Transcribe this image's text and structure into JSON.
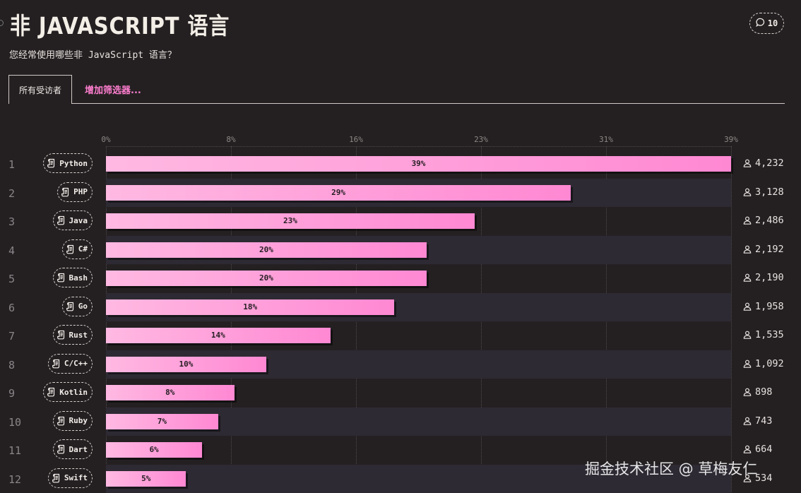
{
  "header": {
    "title": "非 JAVASCRIPT 语言",
    "subtitle": "您经常使用哪些非 JavaScript 语言？",
    "comment_count": "10"
  },
  "filters": {
    "active_tab": "所有受访者",
    "add_filter": "增加筛选器..."
  },
  "watermark": "掘金技术社区 @ 草梅友仁",
  "chart_data": {
    "type": "bar",
    "orientation": "horizontal",
    "title": "非 JAVASCRIPT 语言",
    "xlim": [
      0,
      39
    ],
    "x_ticks": [
      "0%",
      "8%",
      "16%",
      "23%",
      "31%",
      "39%"
    ],
    "x_tick_values": [
      0,
      7.8,
      15.6,
      23.4,
      31.2,
      39
    ],
    "categories": [
      "Python",
      "PHP",
      "Java",
      "C#",
      "Bash",
      "Go",
      "Rust",
      "C/C++",
      "Kotlin",
      "Ruby",
      "Dart",
      "Swift"
    ],
    "ranks": [
      "1",
      "2",
      "3",
      "4",
      "5",
      "6",
      "7",
      "8",
      "9",
      "10",
      "11",
      "12"
    ],
    "values": [
      39,
      29,
      23,
      20,
      20,
      18,
      14,
      10,
      8,
      7,
      6,
      5
    ],
    "value_labels": [
      "39%",
      "29%",
      "23%",
      "20%",
      "20%",
      "18%",
      "14%",
      "10%",
      "8%",
      "7%",
      "6%",
      "5%"
    ],
    "counts": [
      4232,
      3128,
      2486,
      2192,
      2190,
      1958,
      1535,
      1092,
      898,
      743,
      664,
      534
    ],
    "count_labels": [
      "4,232",
      "3,128",
      "2,486",
      "2,192",
      "2,190",
      "1,958",
      "1,535",
      "1,092",
      "898",
      "743",
      "664",
      "534"
    ]
  }
}
